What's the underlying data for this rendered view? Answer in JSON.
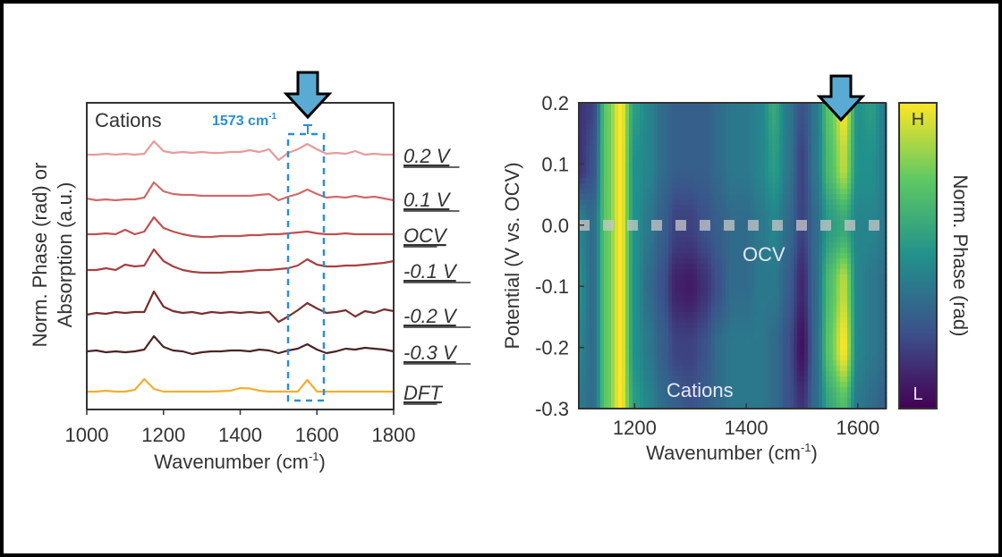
{
  "chart_data": [
    {
      "type": "line",
      "panel_label": "Cations",
      "annotation": "1573 cm",
      "annotation_sup": "-1",
      "xlabel": "Wavenumber (cm",
      "xlabel_sup": "-1",
      "xlabel_end": ")",
      "ylabel_line1": "Norm. Phase (rad) or",
      "ylabel_line2": "Absorption (a.u.)",
      "xlim": [
        1000,
        1800
      ],
      "xticks": [
        "1000",
        "1200",
        "1400",
        "1600",
        "1800"
      ],
      "highlight_range": [
        1525,
        1620
      ],
      "arrow_color": "#5aabd3",
      "highlight_color": "#2a8fd0",
      "x": [
        1000,
        1025,
        1050,
        1075,
        1100,
        1125,
        1150,
        1175,
        1200,
        1225,
        1250,
        1275,
        1300,
        1325,
        1350,
        1375,
        1400,
        1425,
        1450,
        1475,
        1500,
        1525,
        1550,
        1575,
        1600,
        1625,
        1650,
        1675,
        1700,
        1725,
        1750,
        1775,
        1800
      ],
      "series": [
        {
          "name": "0.2 V",
          "color": "#e89a9a",
          "values": [
            0,
            0,
            0.1,
            0,
            0.1,
            0,
            0.1,
            1.5,
            0.4,
            0.2,
            0.3,
            0.2,
            0.3,
            0.2,
            0.2,
            0.3,
            0.3,
            0.5,
            0.3,
            0.6,
            -0.6,
            0.2,
            0.6,
            1.2,
            0.6,
            0.1,
            0.2,
            0.1,
            0.4,
            0,
            0.1,
            0,
            0
          ]
        },
        {
          "name": "0.1 V",
          "color": "#d06a6a",
          "values": [
            0,
            -0.2,
            -0.1,
            -0.2,
            -0.1,
            -0.1,
            0.1,
            1.8,
            0.8,
            0.5,
            0.4,
            0.4,
            0.3,
            0.3,
            0.3,
            0.3,
            0.3,
            0.3,
            0.4,
            0.5,
            -0.2,
            0.2,
            0.5,
            1.0,
            0.5,
            0.1,
            0.2,
            0.1,
            0.3,
            0.1,
            0.2,
            0,
            -0.2
          ]
        },
        {
          "name": "OCV",
          "color": "#c0504f",
          "values": [
            0,
            0,
            0.1,
            0,
            0.5,
            0,
            0.3,
            1.9,
            0.7,
            0.3,
            0,
            -0.2,
            -0.3,
            -0.3,
            -0.2,
            -0.2,
            -0.2,
            -0.1,
            -0.1,
            0,
            0,
            0.1,
            0.2,
            0.3,
            0.1,
            0,
            0,
            0.1,
            0,
            0,
            0,
            0,
            0
          ]
        },
        {
          "name": "-0.1 V",
          "color": "#a84040",
          "values": [
            0,
            0,
            0.2,
            0,
            0.6,
            0.4,
            0.5,
            2.3,
            1.0,
            0.4,
            0,
            -0.2,
            -0.3,
            -0.3,
            -0.3,
            -0.2,
            -0.2,
            -0.1,
            0,
            0,
            0.1,
            0.2,
            0.5,
            1.2,
            0.6,
            0.4,
            0.4,
            0.5,
            0.5,
            0.6,
            0.7,
            0.8,
            1.0
          ]
        },
        {
          "name": "-0.2 V",
          "color": "#7a2e2e",
          "values": [
            0,
            0.2,
            0.1,
            0.3,
            0.2,
            0.3,
            0.3,
            2.6,
            0.9,
            0.4,
            0.2,
            0.3,
            0.1,
            0.3,
            0.2,
            0.3,
            0.2,
            0.3,
            0.2,
            0.3,
            -0.8,
            -0.2,
            0.5,
            1.3,
            0.7,
            0.2,
            0.3,
            0.5,
            -0.2,
            0.4,
            0.2,
            0.6,
            0.4
          ]
        },
        {
          "name": "-0.3 V",
          "color": "#4a2424",
          "values": [
            0,
            0.1,
            -0.1,
            0,
            -0.1,
            0,
            0.2,
            1.7,
            0.5,
            0.1,
            0,
            -0.3,
            -0.1,
            0,
            0,
            0.1,
            0.1,
            0,
            0.2,
            0.1,
            -0.2,
            0.1,
            0.3,
            0.8,
            0.2,
            -0.2,
            0,
            0.3,
            0.2,
            0.4,
            0.3,
            0.2,
            0
          ]
        },
        {
          "name": "DFT",
          "color": "#f0b030",
          "values": [
            0,
            0,
            0.1,
            0,
            0,
            0.2,
            1.4,
            0.3,
            0,
            0,
            0,
            0,
            0,
            0,
            0.05,
            0.1,
            0.4,
            0.35,
            0.1,
            0,
            0,
            0,
            0,
            1.3,
            0,
            0,
            0,
            0,
            0,
            0,
            0,
            0,
            0
          ]
        }
      ]
    },
    {
      "type": "heatmap",
      "xlabel": "Wavenumber (cm",
      "xlabel_sup": "-1",
      "xlabel_end": ")",
      "ylabel": "Potential (V vs. OCV)",
      "colorbar_label": "Norm. Phase (rad)",
      "colorbar_high": "H",
      "colorbar_low": "L",
      "colormap": "viridis",
      "annotation_ocv": "OCV",
      "annotation_cations": "Cations",
      "xlim": [
        1100,
        1650
      ],
      "ylim": [
        -0.3,
        0.2
      ],
      "xticks": [
        "1200",
        "1400",
        "1600"
      ],
      "yticks": [
        "0.2",
        "0.1",
        "0.0",
        "-0.1",
        "-0.2",
        "-0.3"
      ],
      "arrow_color": "#5aabd3",
      "x": [
        1100,
        1125,
        1150,
        1175,
        1200,
        1225,
        1250,
        1275,
        1300,
        1325,
        1350,
        1375,
        1400,
        1425,
        1450,
        1475,
        1500,
        1525,
        1550,
        1575,
        1600,
        1625,
        1650
      ],
      "y": [
        0.2,
        0.1,
        0.0,
        -0.1,
        -0.2,
        -0.3
      ],
      "z": [
        [
          0.15,
          0.2,
          0.75,
          1.0,
          0.55,
          0.45,
          0.35,
          0.3,
          0.3,
          0.3,
          0.35,
          0.4,
          0.4,
          0.45,
          0.6,
          0.4,
          0.25,
          0.4,
          0.75,
          1.0,
          0.5,
          0.55,
          0.4
        ],
        [
          0.15,
          0.25,
          0.75,
          1.0,
          0.5,
          0.45,
          0.35,
          0.3,
          0.3,
          0.3,
          0.35,
          0.4,
          0.4,
          0.45,
          0.55,
          0.4,
          0.2,
          0.4,
          0.7,
          0.9,
          0.5,
          0.5,
          0.4
        ],
        [
          0.45,
          0.35,
          0.75,
          1.0,
          0.5,
          0.4,
          0.3,
          0.2,
          0.2,
          0.25,
          0.3,
          0.35,
          0.35,
          0.4,
          0.45,
          0.35,
          0.2,
          0.35,
          0.55,
          0.6,
          0.45,
          0.45,
          0.4
        ],
        [
          0.5,
          0.35,
          0.75,
          1.0,
          0.5,
          0.35,
          0.25,
          0.1,
          0.08,
          0.15,
          0.25,
          0.35,
          0.35,
          0.4,
          0.4,
          0.3,
          0.12,
          0.35,
          0.7,
          0.9,
          0.45,
          0.4,
          0.35
        ],
        [
          0.45,
          0.35,
          0.75,
          1.0,
          0.5,
          0.4,
          0.3,
          0.2,
          0.2,
          0.25,
          0.35,
          0.4,
          0.4,
          0.4,
          0.35,
          0.25,
          0.05,
          0.35,
          0.75,
          1.0,
          0.45,
          0.4,
          0.35
        ],
        [
          0.4,
          0.35,
          0.75,
          1.0,
          0.55,
          0.45,
          0.35,
          0.3,
          0.25,
          0.3,
          0.35,
          0.4,
          0.4,
          0.4,
          0.35,
          0.25,
          0.15,
          0.35,
          0.6,
          0.7,
          0.4,
          0.35,
          0.3
        ]
      ]
    }
  ]
}
